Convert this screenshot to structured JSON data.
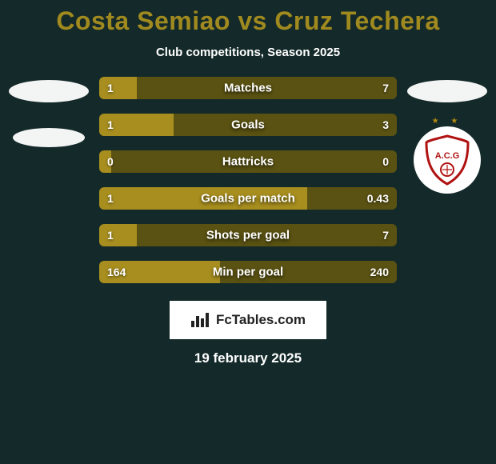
{
  "colors": {
    "background": "#142929",
    "title": "#a08a1f",
    "subtitle": "#ffffff",
    "bar_track": "#5a5212",
    "bar_fill": "#a78e1f",
    "bar_text": "#ffffff",
    "branding_bg": "#ffffff",
    "branding_text": "#222222",
    "date_text": "#ffffff",
    "logo_bg": "#ffffff",
    "shield_stroke": "#b01212",
    "shield_fill": "#ffffff",
    "star_color": "#b0880e"
  },
  "fontsize": {
    "title": 32,
    "subtitle": 15,
    "bar_label": 15,
    "bar_value": 14,
    "branding": 17,
    "date": 17
  },
  "title": "Costa Semiao vs Cruz Techera",
  "subtitle": "Club competitions, Season 2025",
  "date": "19 february 2025",
  "branding_text": "FcTables.com",
  "right_logo_text": "A.C.G",
  "bars": [
    {
      "label": "Matches",
      "left": "1",
      "right": "7",
      "fill_pct": 12.5
    },
    {
      "label": "Goals",
      "left": "1",
      "right": "3",
      "fill_pct": 25
    },
    {
      "label": "Hattricks",
      "left": "0",
      "right": "0",
      "fill_pct": 4
    },
    {
      "label": "Goals per match",
      "left": "1",
      "right": "0.43",
      "fill_pct": 70
    },
    {
      "label": "Shots per goal",
      "left": "1",
      "right": "7",
      "fill_pct": 12.5
    },
    {
      "label": "Min per goal",
      "left": "164",
      "right": "240",
      "fill_pct": 40.5
    }
  ],
  "bar_style": {
    "height": 28,
    "gap": 18,
    "border_radius": 6
  }
}
